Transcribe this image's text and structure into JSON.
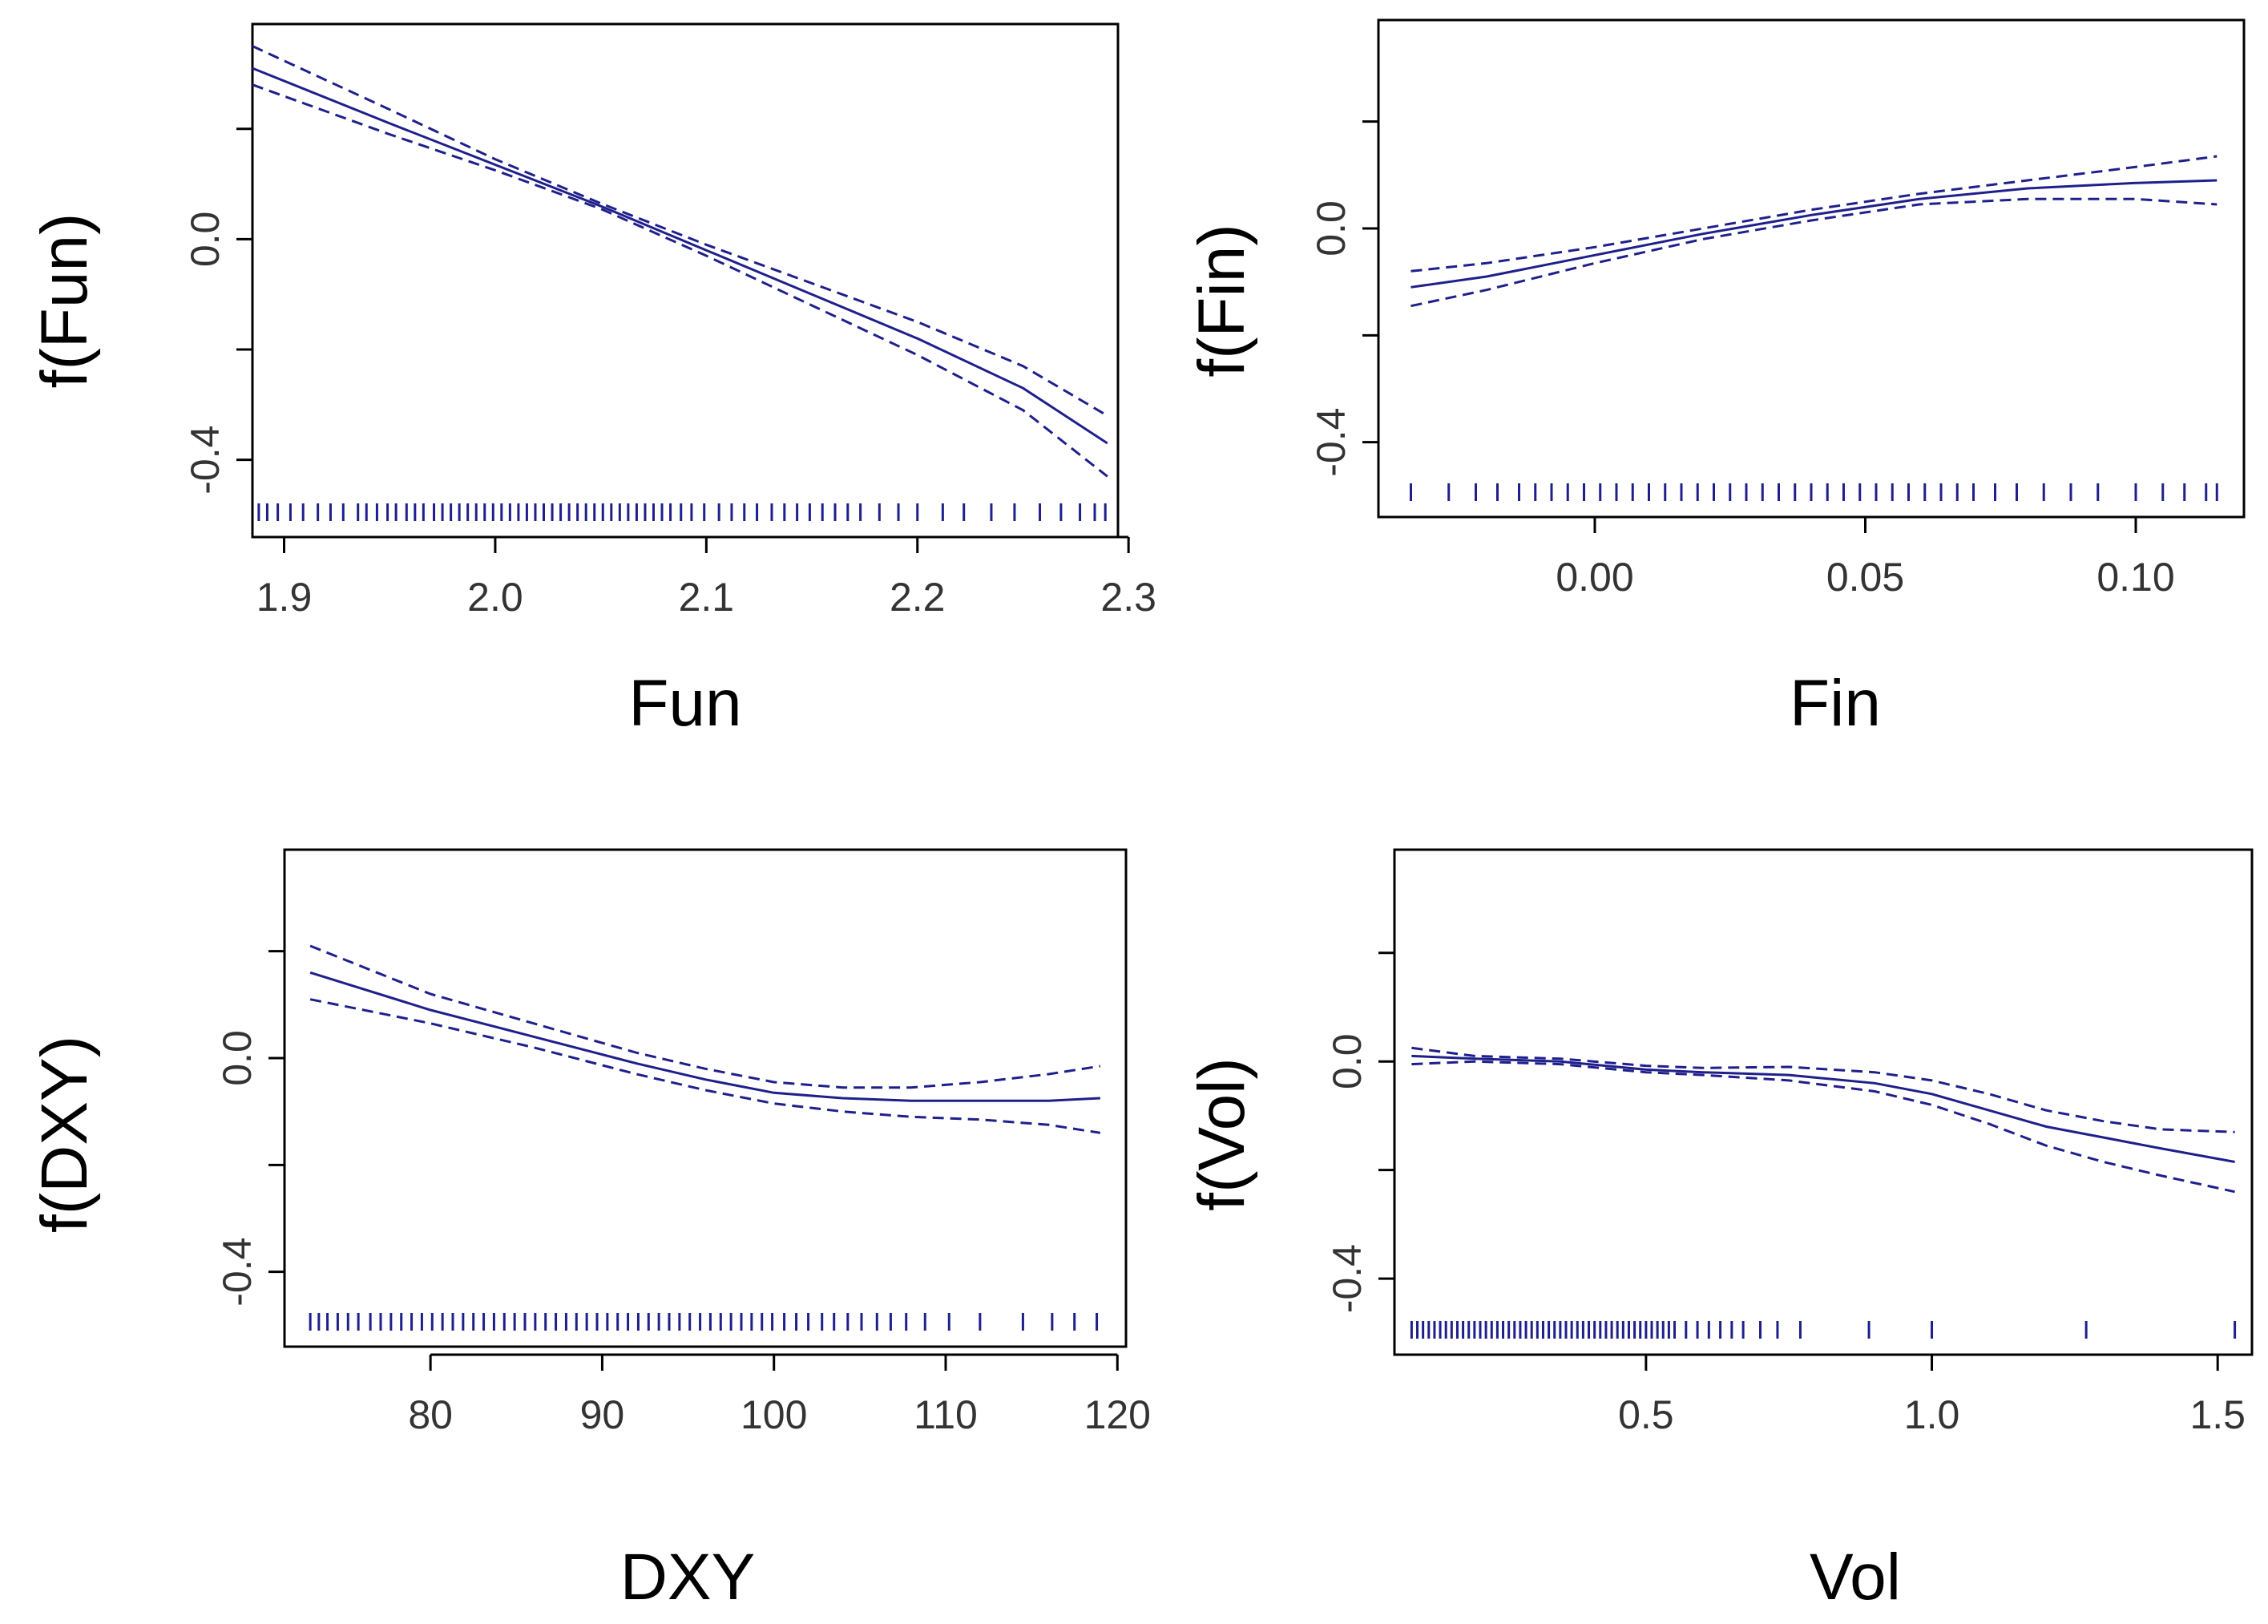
{
  "figure": {
    "line_color": "#1f1f8c",
    "panels_order": [
      "Fun",
      "Fin",
      "DXY",
      "Vol"
    ]
  },
  "chart_data": [
    {
      "id": "fun",
      "type": "line",
      "xlabel": "Fun",
      "ylabel": "f(Fun)",
      "xlim": [
        1.885,
        2.295
      ],
      "ylim": [
        -0.54,
        0.39
      ],
      "x_ticks": [
        1.9,
        2.0,
        2.1,
        2.2,
        2.3
      ],
      "x_tick_labels": [
        "1.9",
        "2.0",
        "2.1",
        "2.2",
        "2.3"
      ],
      "y_ticks": [
        -0.4,
        -0.2,
        0.0,
        0.2
      ],
      "y_tick_labels": [
        "-0.4",
        "",
        "0.0",
        ""
      ],
      "x": [
        1.885,
        1.95,
        2.0,
        2.05,
        2.1,
        2.15,
        2.2,
        2.25,
        2.29
      ],
      "series": [
        {
          "name": "fit",
          "style": "solid",
          "values": [
            0.31,
            0.21,
            0.135,
            0.06,
            -0.02,
            -0.1,
            -0.18,
            -0.27,
            -0.37
          ]
        },
        {
          "name": "upper",
          "style": "dashed",
          "values": [
            0.35,
            0.235,
            0.145,
            0.065,
            -0.01,
            -0.08,
            -0.15,
            -0.23,
            -0.32
          ]
        },
        {
          "name": "lower",
          "style": "dashed",
          "values": [
            0.28,
            0.19,
            0.125,
            0.055,
            -0.03,
            -0.12,
            -0.21,
            -0.31,
            -0.43
          ]
        }
      ],
      "rug": [
        1.888,
        1.892,
        1.897,
        1.903,
        1.909,
        1.916,
        1.922,
        1.928,
        1.935,
        1.939,
        1.944,
        1.949,
        1.953,
        1.958,
        1.962,
        1.966,
        1.971,
        1.975,
        1.979,
        1.983,
        1.987,
        1.991,
        1.995,
        1.999,
        2.003,
        2.007,
        2.011,
        2.015,
        2.019,
        2.023,
        2.027,
        2.031,
        2.035,
        2.039,
        2.043,
        2.047,
        2.051,
        2.055,
        2.059,
        2.063,
        2.067,
        2.071,
        2.075,
        2.079,
        2.083,
        2.088,
        2.093,
        2.099,
        2.106,
        2.112,
        2.118,
        2.124,
        2.131,
        2.137,
        2.143,
        2.149,
        2.155,
        2.161,
        2.167,
        2.173,
        2.182,
        2.191,
        2.2,
        2.212,
        2.222,
        2.235,
        2.246,
        2.258,
        2.268,
        2.277,
        2.284,
        2.289
      ]
    },
    {
      "id": "fin",
      "type": "line",
      "xlabel": "Fin",
      "ylabel": "f(Fin)",
      "xlim": [
        -0.04,
        0.12
      ],
      "ylim": [
        -0.54,
        0.39
      ],
      "x_ticks": [
        0.0,
        0.05,
        0.1
      ],
      "x_tick_labels": [
        "0.00",
        "0.05",
        "0.10"
      ],
      "y_ticks": [
        -0.4,
        -0.2,
        0.0,
        0.2
      ],
      "y_tick_labels": [
        "-0.4",
        "",
        "0.0",
        ""
      ],
      "x": [
        -0.034,
        -0.02,
        0.0,
        0.02,
        0.04,
        0.06,
        0.08,
        0.1,
        0.115
      ],
      "series": [
        {
          "name": "fit",
          "style": "solid",
          "values": [
            -0.11,
            -0.09,
            -0.05,
            -0.01,
            0.025,
            0.055,
            0.075,
            0.085,
            0.09
          ]
        },
        {
          "name": "upper",
          "style": "dashed",
          "values": [
            -0.08,
            -0.065,
            -0.035,
            0.0,
            0.035,
            0.065,
            0.09,
            0.115,
            0.135
          ]
        },
        {
          "name": "lower",
          "style": "dashed",
          "values": [
            -0.145,
            -0.115,
            -0.065,
            -0.02,
            0.015,
            0.045,
            0.055,
            0.055,
            0.045
          ]
        }
      ],
      "rug": [
        -0.034,
        -0.027,
        -0.022,
        -0.018,
        -0.014,
        -0.011,
        -0.008,
        -0.005,
        -0.002,
        0.001,
        0.004,
        0.007,
        0.01,
        0.013,
        0.016,
        0.019,
        0.022,
        0.025,
        0.028,
        0.031,
        0.034,
        0.037,
        0.04,
        0.043,
        0.046,
        0.049,
        0.052,
        0.055,
        0.058,
        0.061,
        0.064,
        0.067,
        0.07,
        0.074,
        0.078,
        0.083,
        0.088,
        0.093,
        0.1,
        0.105,
        0.109,
        0.113,
        0.115
      ]
    },
    {
      "id": "dxy",
      "type": "line",
      "xlabel": "DXY",
      "ylabel": "f(DXY)",
      "xlim": [
        71.5,
        120.5
      ],
      "ylim": [
        -0.54,
        0.39
      ],
      "x_ticks": [
        80,
        90,
        100,
        110,
        120
      ],
      "x_tick_labels": [
        "80",
        "90",
        "100",
        "110",
        "120"
      ],
      "y_ticks": [
        -0.4,
        -0.2,
        0.0,
        0.2
      ],
      "y_tick_labels": [
        "-0.4",
        "",
        "0.0",
        ""
      ],
      "x": [
        73,
        80,
        86,
        92,
        96,
        100,
        104,
        108,
        112,
        116,
        119
      ],
      "series": [
        {
          "name": "fit",
          "style": "solid",
          "values": [
            0.16,
            0.09,
            0.04,
            -0.01,
            -0.04,
            -0.065,
            -0.075,
            -0.08,
            -0.08,
            -0.08,
            -0.075
          ]
        },
        {
          "name": "upper",
          "style": "dashed",
          "values": [
            0.21,
            0.12,
            0.065,
            0.01,
            -0.02,
            -0.045,
            -0.055,
            -0.055,
            -0.045,
            -0.03,
            -0.015
          ]
        },
        {
          "name": "lower",
          "style": "dashed",
          "values": [
            0.11,
            0.065,
            0.02,
            -0.03,
            -0.06,
            -0.085,
            -0.1,
            -0.11,
            -0.115,
            -0.125,
            -0.14
          ]
        }
      ],
      "rug": [
        73.0,
        73.5,
        74.0,
        74.6,
        75.2,
        75.8,
        76.5,
        77.1,
        77.7,
        78.3,
        78.9,
        79.5,
        80.1,
        80.7,
        81.3,
        81.9,
        82.5,
        83.1,
        83.7,
        84.3,
        84.9,
        85.5,
        86.1,
        86.7,
        87.3,
        87.9,
        88.5,
        89.1,
        89.7,
        90.3,
        90.9,
        91.5,
        92.1,
        92.7,
        93.3,
        93.9,
        94.5,
        95.1,
        95.7,
        96.3,
        96.9,
        97.5,
        98.1,
        98.7,
        99.3,
        99.9,
        100.6,
        101.3,
        102.0,
        102.8,
        103.5,
        104.3,
        105.1,
        106.0,
        106.8,
        107.7,
        108.8,
        110.2,
        112.0,
        114.5,
        116.2,
        117.5,
        118.8
      ]
    },
    {
      "id": "vol",
      "type": "line",
      "xlabel": "Vol",
      "ylabel": "f(Vol)",
      "xlim": [
        0.06,
        1.56
      ],
      "ylim": [
        -0.54,
        0.39
      ],
      "x_ticks": [
        0.5,
        1.0,
        1.5
      ],
      "x_tick_labels": [
        "0.5",
        "1.0",
        "1.5"
      ],
      "y_ticks": [
        -0.4,
        -0.2,
        0.0,
        0.2
      ],
      "y_tick_labels": [
        "-0.4",
        "",
        "0.0",
        ""
      ],
      "x": [
        0.09,
        0.2,
        0.35,
        0.5,
        0.6,
        0.75,
        0.9,
        1.0,
        1.1,
        1.2,
        1.3,
        1.4,
        1.53
      ],
      "series": [
        {
          "name": "fit",
          "style": "solid",
          "values": [
            0.01,
            0.005,
            0.0,
            -0.015,
            -0.02,
            -0.025,
            -0.04,
            -0.06,
            -0.09,
            -0.12,
            -0.14,
            -0.16,
            -0.185
          ]
        },
        {
          "name": "upper",
          "style": "dashed",
          "values": [
            0.025,
            0.01,
            0.005,
            -0.008,
            -0.012,
            -0.01,
            -0.02,
            -0.035,
            -0.06,
            -0.09,
            -0.11,
            -0.125,
            -0.13
          ]
        },
        {
          "name": "lower",
          "style": "dashed",
          "values": [
            -0.005,
            0.0,
            -0.005,
            -0.02,
            -0.025,
            -0.035,
            -0.055,
            -0.08,
            -0.115,
            -0.155,
            -0.185,
            -0.21,
            -0.24
          ]
        }
      ],
      "rug": [
        0.09,
        0.1,
        0.11,
        0.12,
        0.13,
        0.14,
        0.15,
        0.16,
        0.17,
        0.18,
        0.19,
        0.2,
        0.21,
        0.22,
        0.23,
        0.24,
        0.25,
        0.26,
        0.27,
        0.28,
        0.29,
        0.3,
        0.31,
        0.32,
        0.33,
        0.34,
        0.35,
        0.36,
        0.37,
        0.38,
        0.39,
        0.4,
        0.41,
        0.42,
        0.43,
        0.44,
        0.45,
        0.46,
        0.47,
        0.48,
        0.49,
        0.5,
        0.51,
        0.52,
        0.53,
        0.54,
        0.55,
        0.57,
        0.59,
        0.61,
        0.63,
        0.65,
        0.67,
        0.7,
        0.73,
        0.77,
        0.89,
        1.0,
        1.27,
        1.53
      ]
    }
  ]
}
